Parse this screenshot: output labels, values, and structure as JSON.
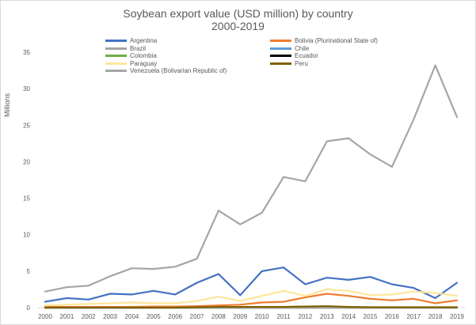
{
  "chart_data": {
    "type": "line",
    "title": "Soybean export value (USD million) by country",
    "subtitle": "2000-2019",
    "ylabel": "Millions",
    "xlabel": "",
    "ylim": [
      0,
      35
    ],
    "yticks": [
      0,
      5,
      10,
      15,
      20,
      25,
      30,
      35
    ],
    "grid": false,
    "legend_placement": "top-left",
    "x": [
      "2000",
      "2001",
      "2002",
      "2003",
      "2004",
      "2005",
      "2006",
      "2007",
      "2008",
      "2009",
      "2010",
      "2011",
      "2012",
      "2013",
      "2014",
      "2015",
      "2016",
      "2017",
      "2018",
      "2019"
    ],
    "series": [
      {
        "name": "Argentina",
        "color": "#4472c4",
        "values": [
          0.8,
          1.3,
          1.1,
          1.9,
          1.8,
          2.3,
          1.8,
          3.4,
          4.6,
          1.7,
          5.0,
          5.5,
          3.2,
          4.1,
          3.8,
          4.2,
          3.2,
          2.7,
          1.3,
          3.4
        ]
      },
      {
        "name": "Bolivia (Plurinational State of)",
        "color": "#ed7d31",
        "values": [
          0.1,
          0.1,
          0.1,
          0.1,
          0.1,
          0.15,
          0.15,
          0.2,
          0.3,
          0.4,
          0.7,
          0.8,
          1.4,
          1.9,
          1.6,
          1.2,
          1.0,
          1.2,
          0.6,
          1.0
        ]
      },
      {
        "name": "Brazil",
        "color": "#a5a5a5",
        "values": [
          2.2,
          2.8,
          3.0,
          4.3,
          5.4,
          5.3,
          5.6,
          6.7,
          13.3,
          11.4,
          13.0,
          17.9,
          17.3,
          22.8,
          23.2,
          21.0,
          19.3,
          25.8,
          33.2,
          26.1
        ]
      },
      {
        "name": "Chile",
        "color": "#5b9bd5",
        "values": [
          0,
          0,
          0,
          0,
          0,
          0,
          0,
          0,
          0,
          0,
          0,
          0,
          0,
          0,
          0,
          0,
          0,
          0,
          0,
          0
        ]
      },
      {
        "name": "Colombia",
        "color": "#70ad47",
        "values": [
          0,
          0,
          0,
          0,
          0,
          0,
          0,
          0,
          0,
          0,
          0,
          0,
          0,
          0,
          0,
          0,
          0,
          0,
          0,
          0
        ]
      },
      {
        "name": "Ecuador",
        "color": "#000000",
        "values": [
          0,
          0,
          0,
          0,
          0,
          0,
          0,
          0,
          0,
          0,
          0,
          0,
          0,
          0,
          0,
          0,
          0,
          0,
          0,
          0
        ]
      },
      {
        "name": "Paraguay",
        "color": "#ffe699",
        "values": [
          0.3,
          0.4,
          0.5,
          0.6,
          0.7,
          0.6,
          0.6,
          0.9,
          1.5,
          0.9,
          1.6,
          2.3,
          1.6,
          2.5,
          2.3,
          1.7,
          1.8,
          2.2,
          2.0,
          1.6
        ]
      },
      {
        "name": "Peru",
        "color": "#7f6000",
        "values": [
          0,
          0,
          0,
          0,
          0,
          0,
          0,
          0.05,
          0.1,
          0.1,
          0.1,
          0.1,
          0.15,
          0.2,
          0.1,
          0.05,
          0.05,
          0.05,
          0.05,
          0.05
        ]
      },
      {
        "name": "Venezuela (Bolivarian Republic of)",
        "color": "#a5a5a5",
        "values": [
          0,
          0,
          0,
          0,
          0,
          0,
          0,
          0,
          0,
          0,
          0,
          0,
          0,
          0,
          0,
          0,
          0,
          0,
          0,
          0
        ]
      }
    ]
  }
}
